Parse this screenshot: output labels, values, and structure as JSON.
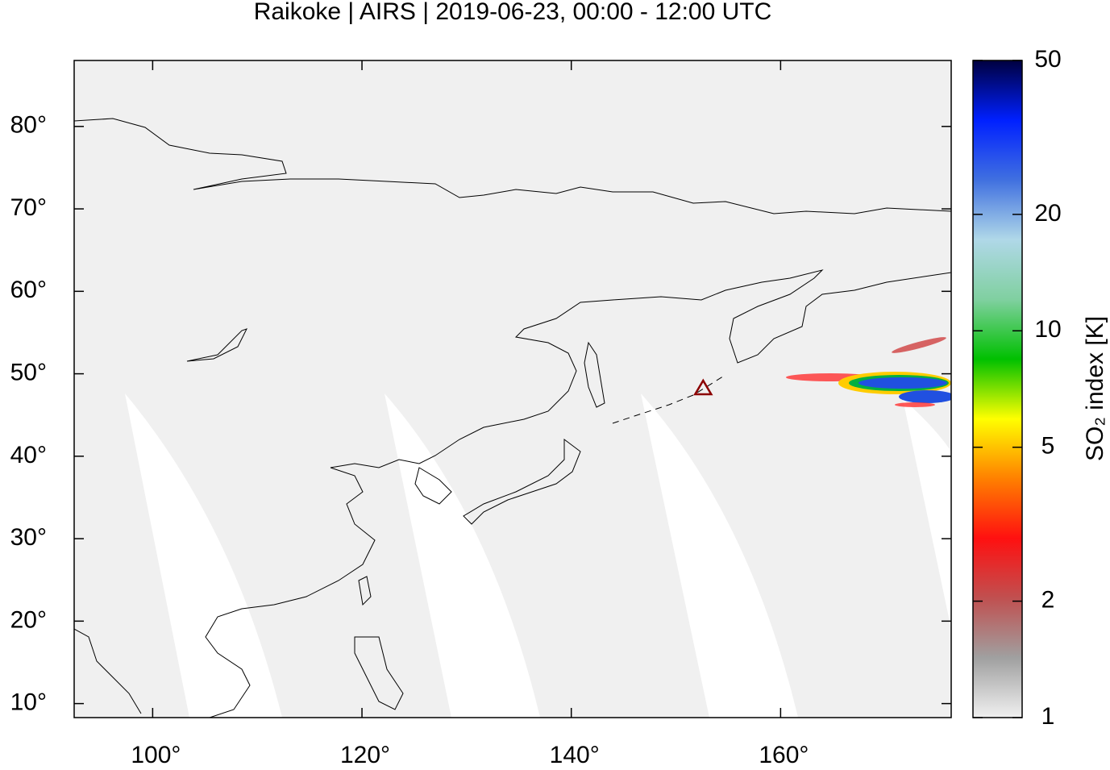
{
  "chart_data": {
    "type": "map",
    "title": "Raikoke | AIRS | 2019-06-23, 00:00 - 12:00 UTC",
    "xlim": [
      92.5,
      176.3
    ],
    "xticks": [
      {
        "value": 100,
        "label": "100°"
      },
      {
        "value": 120,
        "label": "120°"
      },
      {
        "value": 140,
        "label": "140°"
      },
      {
        "value": 160,
        "label": "160°"
      }
    ],
    "ylim": [
      8.3,
      88
    ],
    "yticks": [
      {
        "value": 10,
        "label": "10°"
      },
      {
        "value": 20,
        "label": "20°"
      },
      {
        "value": 30,
        "label": "30°"
      },
      {
        "value": 40,
        "label": "40°"
      },
      {
        "value": 50,
        "label": "50°"
      },
      {
        "value": 60,
        "label": "60°"
      },
      {
        "value": 70,
        "label": "70°"
      },
      {
        "value": 80,
        "label": "80°"
      }
    ],
    "colorbar": {
      "label": "SO₂ index [K]",
      "scale": "log",
      "lim": [
        1,
        50
      ],
      "ticks": [
        1,
        2,
        5,
        10,
        20,
        50
      ],
      "colors": [
        "#f0f0f0",
        "#a0a0a0",
        "#c05050",
        "#ff1010",
        "#ff8000",
        "#ffff00",
        "#00c000",
        "#80d0a0",
        "#b0d8e8",
        "#4070e0",
        "#0020ff",
        "#000040"
      ]
    },
    "marker": {
      "lon": 152.6,
      "lat": 48.3,
      "color": "#8b0000"
    }
  }
}
